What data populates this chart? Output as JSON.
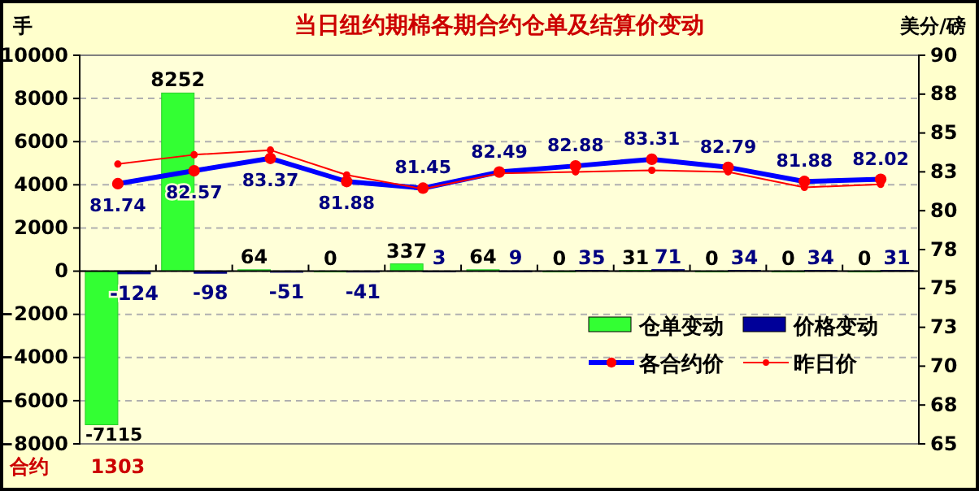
{
  "chart_data": {
    "type": "bar",
    "title": "当日纽约期棉各期合约仓单及结算价变动",
    "xlabel": "合约",
    "ylabel": "手",
    "y2label": "美分/磅",
    "categories": [
      "1303",
      null,
      null,
      null,
      null,
      null,
      null,
      null,
      null,
      null,
      null
    ],
    "ylim": [
      -8000,
      10000
    ],
    "yticks": [
      -8000,
      -6000,
      -4000,
      -2000,
      0,
      2000,
      4000,
      6000,
      8000,
      10000
    ],
    "y2lim": [
      65,
      90
    ],
    "y2ticks": [
      {
        "value": 65,
        "label": "65"
      },
      {
        "value": 67.5,
        "label": "68"
      },
      {
        "value": 70,
        "label": "70"
      },
      {
        "value": 72.5,
        "label": "73"
      },
      {
        "value": 75,
        "label": "75"
      },
      {
        "value": 77.5,
        "label": "78"
      },
      {
        "value": 80,
        "label": "80"
      },
      {
        "value": 82.5,
        "label": "83"
      },
      {
        "value": 85,
        "label": "85"
      },
      {
        "value": 87.5,
        "label": "88"
      },
      {
        "value": 90,
        "label": "90"
      }
    ],
    "grid": "y",
    "legend": "bottom right",
    "marker": "circle",
    "series": [
      {
        "name": "仓单变动",
        "color": "#33ff33",
        "values": [
          -7115,
          8252,
          64,
          0,
          337,
          64,
          0,
          31,
          0,
          0,
          0
        ],
        "value_labels": [
          "-7115",
          "8252",
          "64",
          "0",
          "337",
          "64",
          "0",
          "31",
          "0",
          "0",
          "0"
        ]
      },
      {
        "name": "价格变动",
        "color": "#000099",
        "values": [
          -124,
          -98,
          -51,
          -41,
          3,
          9,
          35,
          71,
          34,
          34,
          31
        ],
        "value_labels": [
          "-124",
          "-98",
          "-51",
          "-41",
          "3",
          "9",
          "35",
          "71",
          "34",
          "34",
          "31"
        ]
      },
      {
        "name": "各合约价",
        "type": "line",
        "axis": "y2",
        "color": "#0000ff",
        "values": [
          81.74,
          82.57,
          83.37,
          81.88,
          81.45,
          82.49,
          82.88,
          83.31,
          82.79,
          81.88,
          82.02
        ],
        "value_labels": [
          "81.74",
          "82.57",
          "83.37",
          "81.88",
          "81.45",
          "82.49",
          "82.88",
          "83.31",
          "82.79",
          "81.88",
          "82.02"
        ]
      },
      {
        "name": "昨日价",
        "type": "line",
        "axis": "y2",
        "color": "#ff0000",
        "values": [
          83.0,
          83.6,
          83.9,
          82.3,
          81.4,
          82.4,
          82.5,
          82.6,
          82.5,
          81.5,
          81.7
        ]
      }
    ]
  }
}
